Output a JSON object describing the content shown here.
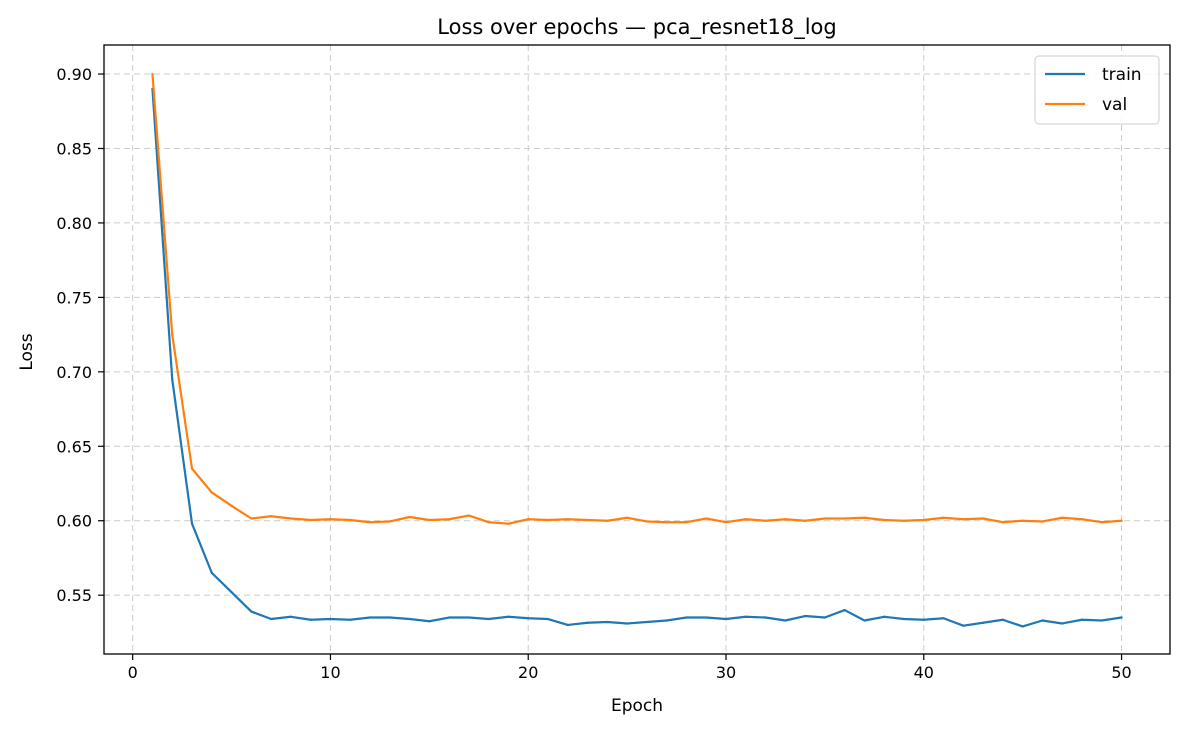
{
  "chart_data": {
    "type": "line",
    "title": "Loss over epochs — pca_resnet18_log",
    "xlabel": "Epoch",
    "ylabel": "Loss",
    "xlim": [
      -1.45,
      52.45
    ],
    "ylim": [
      0.5105,
      0.9195
    ],
    "xticks": [
      0,
      10,
      20,
      30,
      40,
      50
    ],
    "xtick_labels": [
      "0",
      "10",
      "20",
      "30",
      "40",
      "50"
    ],
    "yticks": [
      0.55,
      0.6,
      0.65,
      0.7,
      0.75,
      0.8,
      0.85,
      0.9
    ],
    "ytick_labels": [
      "0.55",
      "0.60",
      "0.65",
      "0.70",
      "0.75",
      "0.80",
      "0.85",
      "0.90"
    ],
    "grid": true,
    "legend_position": "top-right",
    "x": [
      1,
      2,
      3,
      4,
      5,
      6,
      7,
      8,
      9,
      10,
      11,
      12,
      13,
      14,
      15,
      16,
      17,
      18,
      19,
      20,
      21,
      22,
      23,
      24,
      25,
      26,
      27,
      28,
      29,
      30,
      31,
      32,
      33,
      34,
      35,
      36,
      37,
      38,
      39,
      40,
      41,
      42,
      43,
      44,
      45,
      46,
      47,
      48,
      49,
      50
    ],
    "series": [
      {
        "name": "train",
        "color": "#1f77b4",
        "values": [
          0.89,
          0.695,
          0.598,
          0.565,
          0.552,
          0.539,
          0.534,
          0.5355,
          0.5335,
          0.534,
          0.5335,
          0.535,
          0.535,
          0.534,
          0.5325,
          0.535,
          0.535,
          0.534,
          0.5355,
          0.5345,
          0.534,
          0.53,
          0.5315,
          0.532,
          0.531,
          0.532,
          0.533,
          0.535,
          0.535,
          0.534,
          0.5355,
          0.535,
          0.533,
          0.536,
          0.535,
          0.54,
          0.533,
          0.5355,
          0.534,
          0.5335,
          0.5345,
          0.5295,
          0.5315,
          0.5335,
          0.529,
          0.533,
          0.531,
          0.5335,
          0.533,
          0.535
        ]
      },
      {
        "name": "val",
        "color": "#ff7f0e",
        "values": [
          0.9,
          0.725,
          0.635,
          0.619,
          0.61,
          0.6015,
          0.603,
          0.6015,
          0.6005,
          0.601,
          0.6005,
          0.599,
          0.5995,
          0.6025,
          0.6005,
          0.601,
          0.6035,
          0.599,
          0.598,
          0.601,
          0.6005,
          0.601,
          0.6005,
          0.6,
          0.602,
          0.5995,
          0.599,
          0.599,
          0.6015,
          0.599,
          0.601,
          0.6,
          0.601,
          0.6,
          0.6015,
          0.6015,
          0.602,
          0.6005,
          0.6,
          0.6005,
          0.602,
          0.601,
          0.6015,
          0.599,
          0.6,
          0.5995,
          0.602,
          0.601,
          0.599,
          0.6
        ]
      }
    ]
  }
}
